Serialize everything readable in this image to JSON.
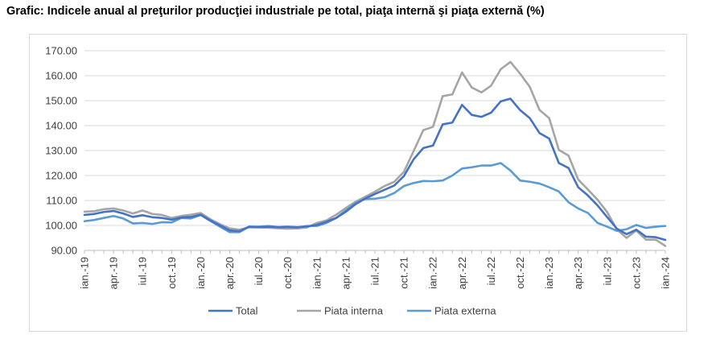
{
  "title": "Grafic: Indicele anual al preţurilor producţiei industriale pe total, piaţa internă şi piaţa externă (%)",
  "chart_data": {
    "type": "line",
    "title": "Grafic: Indicele anual al preţurilor producţiei industriale pe total, piaţa internă şi piaţa externă (%)",
    "xlabel": "",
    "ylabel": "",
    "ylim": [
      90,
      170
    ],
    "yticks": [
      "90.00",
      "100.00",
      "110.00",
      "120.00",
      "130.00",
      "140.00",
      "150.00",
      "160.00",
      "170.00"
    ],
    "xtick_labels": [
      "ian.-19",
      "apr.-19",
      "iul.-19",
      "oct.-19",
      "ian.-20",
      "apr.-20",
      "iul.-20",
      "oct.-20",
      "ian.-21",
      "apr.-21",
      "iul.-21",
      "oct.-21",
      "ian.-22",
      "apr.-22",
      "iul.-22",
      "oct.-22",
      "ian.-23",
      "apr.-23",
      "iul.-23",
      "oct.-23",
      "ian.-24"
    ],
    "grid": true,
    "legend": "bottom",
    "x": [
      "ian.-19",
      "feb.-19",
      "mar.-19",
      "apr.-19",
      "mai.-19",
      "iun.-19",
      "iul.-19",
      "aug.-19",
      "sep.-19",
      "oct.-19",
      "nov.-19",
      "dec.-19",
      "ian.-20",
      "feb.-20",
      "mar.-20",
      "apr.-20",
      "mai.-20",
      "iun.-20",
      "iul.-20",
      "aug.-20",
      "sep.-20",
      "oct.-20",
      "nov.-20",
      "dec.-20",
      "ian.-21",
      "feb.-21",
      "mar.-21",
      "apr.-21",
      "mai.-21",
      "iun.-21",
      "iul.-21",
      "aug.-21",
      "sep.-21",
      "oct.-21",
      "nov.-21",
      "dec.-21",
      "ian.-22",
      "feb.-22",
      "mar.-22",
      "apr.-22",
      "mai.-22",
      "iun.-22",
      "iul.-22",
      "aug.-22",
      "sep.-22",
      "oct.-22",
      "nov.-22",
      "dec.-22",
      "ian.-23",
      "feb.-23",
      "mar.-23",
      "apr.-23",
      "mai.-23",
      "iun.-23",
      "iul.-23",
      "aug.-23",
      "sep.-23",
      "oct.-23",
      "nov.-23",
      "dec.-23",
      "ian.-24"
    ],
    "series": [
      {
        "name": "Total",
        "color": "#4472c4",
        "values": [
          104.2,
          104.6,
          105.4,
          105.8,
          104.8,
          103.4,
          104.1,
          103.3,
          103.0,
          102.3,
          103.2,
          103.4,
          104.3,
          102.0,
          100.0,
          98.0,
          97.7,
          99.5,
          99.3,
          99.5,
          99.3,
          99.4,
          99.3,
          99.6,
          100.2,
          101.5,
          103.0,
          105.5,
          108.5,
          110.8,
          112.6,
          114.3,
          116.0,
          119.8,
          126.5,
          131.0,
          132.0,
          140.5,
          141.2,
          148.3,
          144.3,
          143.5,
          145.2,
          149.7,
          150.8,
          146.2,
          143.0,
          137.0,
          134.8,
          125.0,
          123.0,
          115.3,
          112.0,
          108.0,
          103.3,
          98.7,
          96.5,
          98.3,
          95.5,
          95.3,
          94.2
        ]
      },
      {
        "name": "Piata interna",
        "color": "#a5a5a5",
        "values": [
          105.5,
          105.7,
          106.5,
          106.8,
          106.0,
          104.8,
          106.0,
          104.6,
          104.2,
          103.0,
          103.8,
          104.3,
          105.0,
          102.5,
          100.5,
          98.8,
          98.3,
          99.2,
          99.2,
          99.1,
          98.9,
          98.7,
          98.8,
          99.2,
          101.0,
          102.0,
          104.3,
          107.0,
          109.5,
          111.5,
          113.5,
          115.8,
          117.5,
          121.5,
          129.8,
          138.2,
          139.5,
          151.8,
          152.5,
          161.3,
          155.3,
          153.3,
          156.0,
          162.6,
          165.5,
          160.8,
          155.5,
          146.3,
          143.0,
          130.3,
          128.0,
          118.4,
          114.4,
          110.3,
          105.3,
          98.3,
          95.0,
          98.0,
          94.3,
          94.3,
          91.8
        ]
      },
      {
        "name": "Piata externa",
        "color": "#5b9bd5",
        "values": [
          101.7,
          102.2,
          103.0,
          103.8,
          102.8,
          100.8,
          101.0,
          100.6,
          101.3,
          101.2,
          103.0,
          102.8,
          104.2,
          101.8,
          99.5,
          97.3,
          97.3,
          99.5,
          99.5,
          99.8,
          99.3,
          99.5,
          99.2,
          99.8,
          99.8,
          101.0,
          103.0,
          106.0,
          109.0,
          110.6,
          110.7,
          111.3,
          113.0,
          115.8,
          117.0,
          117.8,
          117.7,
          118.0,
          120.0,
          122.8,
          123.3,
          124.0,
          124.0,
          125.0,
          122.0,
          118.0,
          117.5,
          116.8,
          115.3,
          113.6,
          109.3,
          106.8,
          105.0,
          101.0,
          99.5,
          97.8,
          98.5,
          100.2,
          99.0,
          99.5,
          99.8
        ]
      }
    ]
  }
}
